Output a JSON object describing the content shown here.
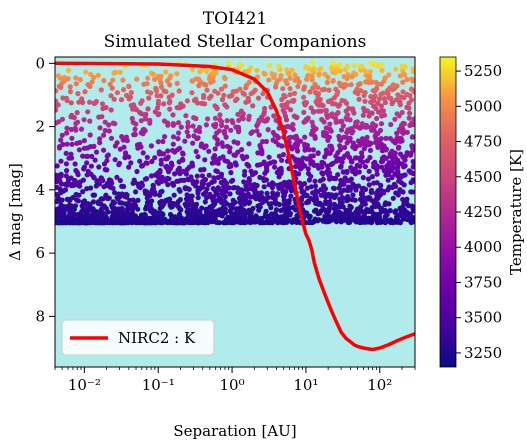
{
  "chart_data": {
    "type": "scatter",
    "title": "TOI421",
    "subtitle": "Simulated Stellar Companions",
    "xlabel": "Separation [AU]",
    "ylabel": "Δ mag [mag]",
    "xscale": "log",
    "xlim": [
      0.004,
      300
    ],
    "ylim": [
      9.6,
      -0.2
    ],
    "x_ticks": [
      0.01,
      0.1,
      1,
      10,
      100
    ],
    "x_tick_labels": [
      "10⁻²",
      "10⁻¹",
      "10⁰",
      "10¹",
      "10²"
    ],
    "y_ticks": [
      0,
      2,
      4,
      6,
      8
    ],
    "y_tick_labels": [
      "0",
      "2",
      "4",
      "6",
      "8"
    ],
    "background_color": "#b2ebeb",
    "grid": false,
    "legend_position": "lower-left",
    "colorbar": {
      "label": "Temperature [K]",
      "min": 3150,
      "max": 5350,
      "ticks": [
        3250,
        3500,
        3750,
        4000,
        4250,
        4500,
        4750,
        5000,
        5250
      ],
      "tick_labels": [
        "3250",
        "3500",
        "3750",
        "4000",
        "4250",
        "4500",
        "4750",
        "5000",
        "5250"
      ],
      "colormap": "plasma"
    },
    "scatter_cloud": {
      "description_note": "",
      "dmag_range": [
        0,
        5.3
      ],
      "sep_range": [
        0.004,
        300
      ],
      "temperature_vs_dmag": [
        [
          0,
          5300
        ],
        [
          1,
          4700
        ],
        [
          2,
          4200
        ],
        [
          3,
          3800
        ],
        [
          4,
          3450
        ],
        [
          5.3,
          3200
        ]
      ]
    },
    "series": [
      {
        "name": "NIRC2 : K",
        "color": "#ff0000",
        "x": [
          0.004,
          0.1,
          0.5,
          1,
          2,
          3,
          4,
          5,
          6,
          7,
          8,
          9,
          10,
          11,
          12,
          13,
          15,
          18,
          22,
          25,
          30,
          35,
          40,
          45,
          50,
          60,
          80,
          100,
          130,
          180,
          230,
          300
        ],
        "y": [
          0.0,
          0.02,
          0.1,
          0.2,
          0.5,
          0.9,
          1.5,
          2.2,
          3.0,
          3.8,
          4.5,
          5.0,
          5.4,
          5.6,
          5.9,
          6.3,
          6.8,
          7.3,
          7.8,
          8.1,
          8.5,
          8.7,
          8.8,
          8.9,
          8.95,
          9.0,
          9.05,
          9.0,
          8.9,
          8.75,
          8.65,
          8.55
        ]
      }
    ]
  }
}
